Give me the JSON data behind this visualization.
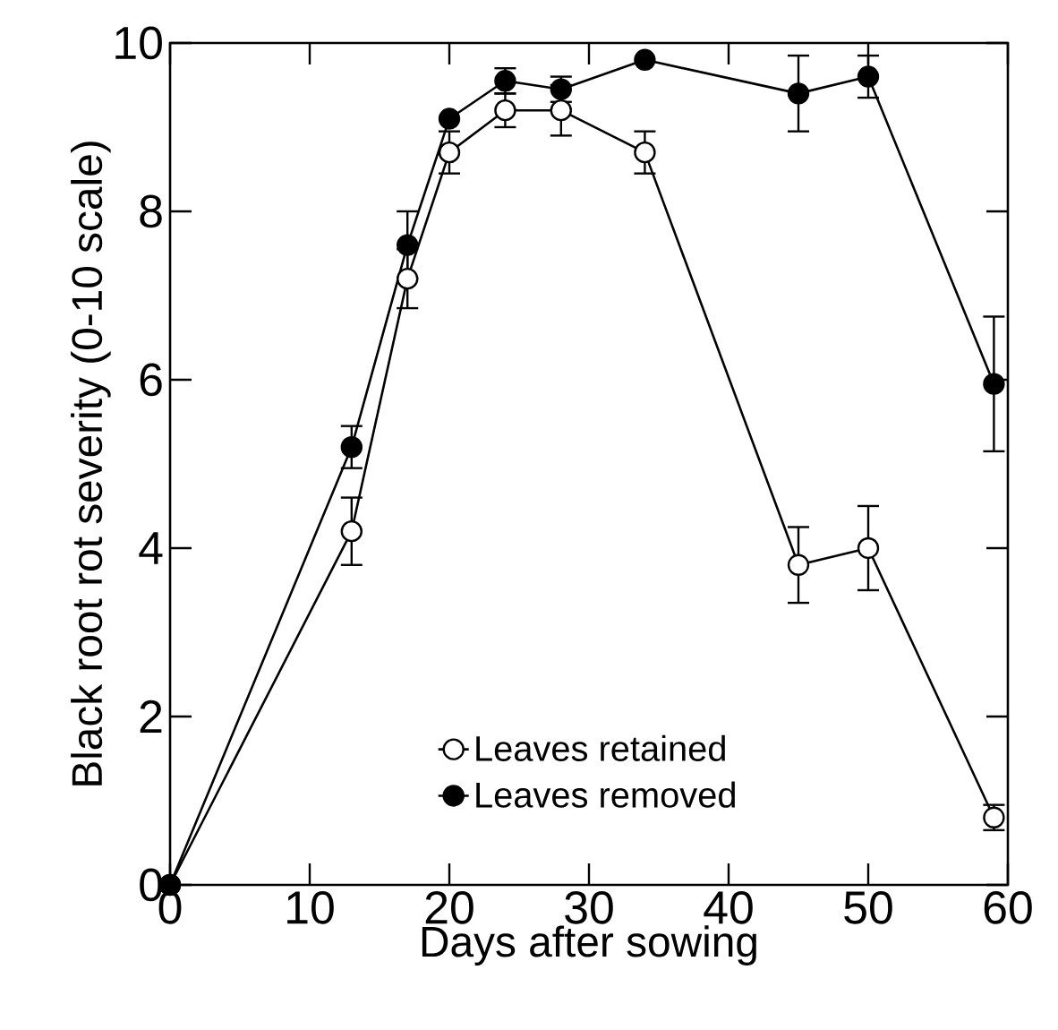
{
  "chart_data": {
    "type": "line",
    "xlabel": "Days after sowing",
    "ylabel": "Black root rot severity (0-10 scale)",
    "x": [
      0,
      13,
      17,
      20,
      24,
      28,
      34,
      45,
      50,
      59
    ],
    "series": [
      {
        "name": "Leaves retained",
        "color": "#000000",
        "values": [
          0,
          4.2,
          7.2,
          8.7,
          9.2,
          9.2,
          8.7,
          3.8,
          4.0,
          0.8
        ],
        "errors": [
          null,
          0.4,
          0.35,
          0.25,
          0.2,
          0.3,
          0.25,
          0.45,
          0.5,
          0.15
        ]
      },
      {
        "name": "Leaves removed",
        "color": "#000000",
        "values": [
          0,
          5.2,
          7.6,
          9.1,
          9.55,
          9.45,
          9.8,
          9.4,
          9.6,
          5.95
        ],
        "errors": [
          null,
          0.25,
          0.4,
          null,
          0.15,
          0.15,
          null,
          0.45,
          0.25,
          0.8
        ]
      }
    ],
    "xlim": [
      0,
      60
    ],
    "ylim": [
      0,
      10
    ],
    "xticks": [
      0,
      10,
      20,
      30,
      40,
      50,
      60
    ],
    "yticks": [
      0,
      2,
      4,
      6,
      8,
      10
    ],
    "legend": "bottom",
    "marker": "circle",
    "line_style": "solid",
    "grid": false
  }
}
